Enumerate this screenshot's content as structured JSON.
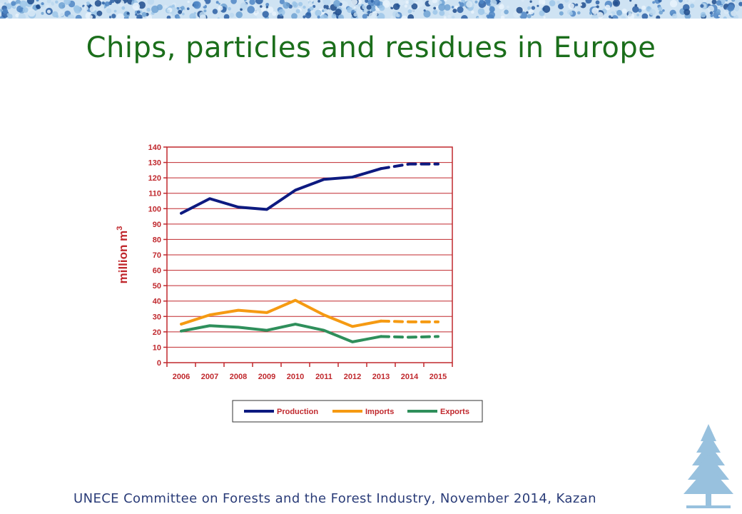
{
  "slide": {
    "title": "Chips, particles and residues in Europe",
    "footer": "UNECE Committee on Forests and the Forest Industry, November 2014, Kazan"
  },
  "colors": {
    "title": "#1b6e1b",
    "axis": "#c0282d",
    "grid": "#c0282d",
    "production": "#0d1a80",
    "imports": "#f59a12",
    "exports": "#2f8f5b",
    "footer": "#2a3c78"
  },
  "chart_data": {
    "type": "line",
    "categories": [
      "2006",
      "2007",
      "2008",
      "2009",
      "2010",
      "2011",
      "2012",
      "2013",
      "2014",
      "2015"
    ],
    "ylabel": "million m",
    "ylabel_superscript": "3",
    "ylim": [
      0,
      140
    ],
    "yticks": [
      0,
      10,
      20,
      30,
      40,
      50,
      60,
      70,
      80,
      90,
      100,
      110,
      120,
      130,
      140
    ],
    "grid": true,
    "legend_position": "bottom",
    "forecast_start_index": 7,
    "series": [
      {
        "name": "Production",
        "values": [
          97,
          106.5,
          101,
          99.5,
          112,
          119,
          120.5,
          126,
          129,
          129
        ]
      },
      {
        "name": "Imports",
        "values": [
          25,
          31,
          34,
          32.5,
          40.5,
          31,
          23.5,
          27,
          26.5,
          26.5
        ]
      },
      {
        "name": "Exports",
        "values": [
          20.5,
          24,
          23,
          21,
          25,
          21,
          13.5,
          17,
          16.5,
          17
        ]
      }
    ]
  }
}
